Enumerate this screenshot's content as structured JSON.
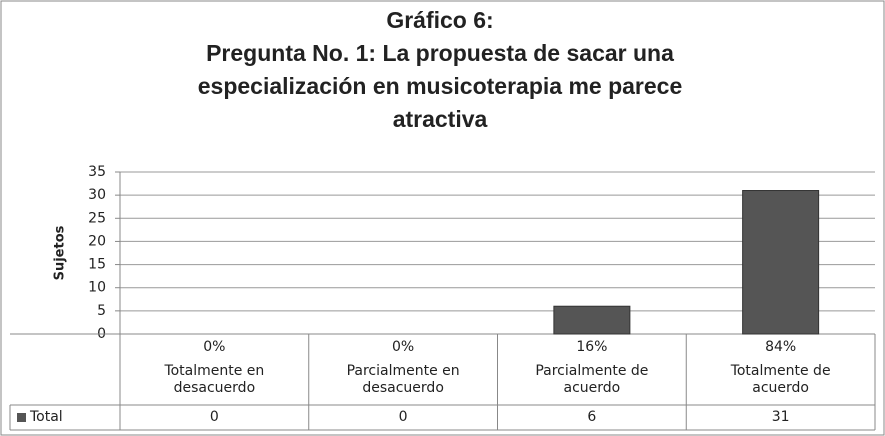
{
  "chart_data": {
    "type": "bar",
    "title": [
      "Gráfico 6:",
      "Pregunta No. 1: La propuesta de sacar una",
      "especialización en musicoterapia me parece",
      "atractiva"
    ],
    "y_label": "Sujetos",
    "categories": [
      "Totalmente en desacuerdo",
      "Parcialmente en desacuerdo",
      "Parcialmente de acuerdo",
      "Totalmente de acuerdo"
    ],
    "percent_labels": [
      "0%",
      "0%",
      "16%",
      "84%"
    ],
    "series": [
      {
        "name": "Total",
        "color": "#555555",
        "values": [
          0,
          0,
          6,
          31
        ]
      }
    ],
    "ylim": [
      0,
      35
    ],
    "yticks": [
      0,
      5,
      10,
      15,
      20,
      25,
      30,
      35
    ],
    "grid": true
  }
}
